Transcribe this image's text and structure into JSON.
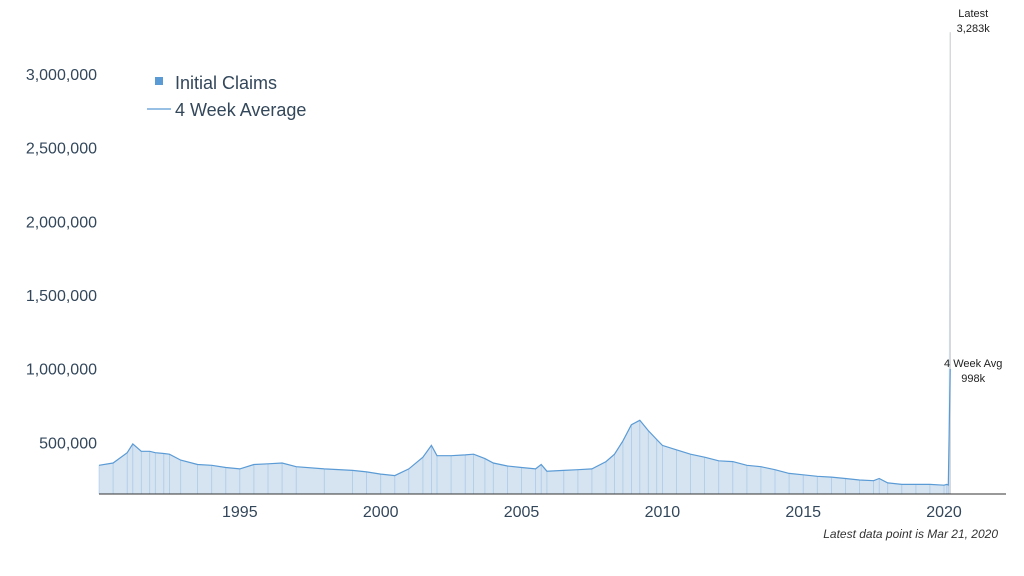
{
  "chart_data": {
    "type": "area",
    "title": "",
    "xlabel": "",
    "ylabel": "",
    "xlim": [
      1990.0,
      2022.2
    ],
    "ylim": [
      150000,
      3400000
    ],
    "y_ticks": [
      {
        "value": 500000,
        "label": "500,000"
      },
      {
        "value": 1000000,
        "label": "1,000,000"
      },
      {
        "value": 1500000,
        "label": "1,500,000"
      },
      {
        "value": 2000000,
        "label": "2,000,000"
      },
      {
        "value": 2500000,
        "label": "2,500,000"
      },
      {
        "value": 3000000,
        "label": "3,000,000"
      }
    ],
    "x_ticks": [
      {
        "value": 1995,
        "label": "1995"
      },
      {
        "value": 2000,
        "label": "2000"
      },
      {
        "value": 2005,
        "label": "2005"
      },
      {
        "value": 2010,
        "label": "2010"
      },
      {
        "value": 2015,
        "label": "2015"
      },
      {
        "value": 2020,
        "label": "2020"
      }
    ],
    "grid": false,
    "legend_position": "top-left",
    "colors": {
      "initial_claims": "#5b9bd5",
      "initial_claims_fill": "#d6e4f2",
      "four_week_avg": "#5b9bd5",
      "latest_line": "#cccccc",
      "axis": "#333333"
    },
    "series": [
      {
        "name": "Initial Claims",
        "style": "bars",
        "x": [
          1990.0,
          1990.5,
          1991.0,
          1991.2,
          1991.5,
          1991.8,
          1992.0,
          1992.3,
          1992.5,
          1992.9,
          1993.5,
          1994.0,
          1994.5,
          1995.0,
          1995.5,
          1996.0,
          1996.5,
          1997.0,
          1998.0,
          1999.0,
          1999.5,
          2000.0,
          2000.5,
          2001.0,
          2001.5,
          2001.8,
          2002.0,
          2002.5,
          2003.0,
          2003.3,
          2003.7,
          2004.0,
          2004.5,
          2005.0,
          2005.5,
          2005.7,
          2005.9,
          2006.5,
          2007.0,
          2007.5,
          2008.0,
          2008.3,
          2008.6,
          2008.9,
          2009.2,
          2009.5,
          2009.8,
          2010.0,
          2010.5,
          2011.0,
          2011.5,
          2012.0,
          2012.5,
          2013.0,
          2013.5,
          2014.0,
          2014.5,
          2015.0,
          2015.5,
          2016.0,
          2016.5,
          2017.0,
          2017.5,
          2017.7,
          2018.0,
          2018.5,
          2019.0,
          2019.5,
          2020.0,
          2020.1,
          2020.15,
          2020.22
        ],
        "values": [
          345000,
          360000,
          430000,
          490000,
          440000,
          440000,
          430000,
          425000,
          420000,
          380000,
          350000,
          345000,
          330000,
          320000,
          350000,
          355000,
          360000,
          335000,
          320000,
          310000,
          300000,
          285000,
          275000,
          320000,
          400000,
          480000,
          410000,
          410000,
          415000,
          420000,
          390000,
          360000,
          340000,
          330000,
          320000,
          350000,
          305000,
          310000,
          315000,
          320000,
          370000,
          420000,
          510000,
          620000,
          650000,
          580000,
          520000,
          480000,
          450000,
          420000,
          400000,
          375000,
          370000,
          345000,
          335000,
          315000,
          290000,
          280000,
          270000,
          265000,
          255000,
          245000,
          240000,
          255000,
          225000,
          215000,
          215000,
          215000,
          210000,
          215000,
          211000,
          3283000
        ]
      },
      {
        "name": "4 Week Average",
        "style": "line",
        "x": [
          1990.0,
          1990.5,
          1991.0,
          1991.2,
          1991.5,
          1991.8,
          1992.0,
          1992.3,
          1992.5,
          1992.9,
          1993.5,
          1994.0,
          1994.5,
          1995.0,
          1995.5,
          1996.0,
          1996.5,
          1997.0,
          1998.0,
          1999.0,
          1999.5,
          2000.0,
          2000.5,
          2001.0,
          2001.5,
          2001.8,
          2002.0,
          2002.5,
          2003.0,
          2003.3,
          2003.7,
          2004.0,
          2004.5,
          2005.0,
          2005.5,
          2005.7,
          2005.9,
          2006.5,
          2007.0,
          2007.5,
          2008.0,
          2008.3,
          2008.6,
          2008.9,
          2009.2,
          2009.5,
          2009.8,
          2010.0,
          2010.5,
          2011.0,
          2011.5,
          2012.0,
          2012.5,
          2013.0,
          2013.5,
          2014.0,
          2014.5,
          2015.0,
          2015.5,
          2016.0,
          2016.5,
          2017.0,
          2017.5,
          2017.7,
          2018.0,
          2018.5,
          2019.0,
          2019.5,
          2020.0,
          2020.1,
          2020.15,
          2020.22
        ],
        "values": [
          345000,
          360000,
          430000,
          490000,
          440000,
          440000,
          430000,
          425000,
          420000,
          380000,
          350000,
          345000,
          330000,
          320000,
          350000,
          355000,
          360000,
          335000,
          320000,
          310000,
          300000,
          285000,
          275000,
          320000,
          400000,
          480000,
          410000,
          410000,
          415000,
          420000,
          390000,
          360000,
          340000,
          330000,
          320000,
          350000,
          305000,
          310000,
          315000,
          320000,
          370000,
          420000,
          510000,
          620000,
          650000,
          580000,
          520000,
          480000,
          450000,
          420000,
          400000,
          375000,
          370000,
          345000,
          335000,
          315000,
          290000,
          280000,
          270000,
          265000,
          255000,
          245000,
          240000,
          255000,
          225000,
          215000,
          215000,
          215000,
          210000,
          215000,
          211000,
          998000
        ]
      }
    ],
    "annotations": [
      {
        "id": "latest",
        "lines": [
          "Latest",
          "3,283k"
        ],
        "x": 2020.22,
        "y": 3283000
      },
      {
        "id": "avg",
        "lines": [
          "4 Week Avg",
          "998k"
        ],
        "x": 2020.22,
        "y": 998000
      }
    ],
    "footnote": "Latest data point is Mar 21, 2020"
  }
}
